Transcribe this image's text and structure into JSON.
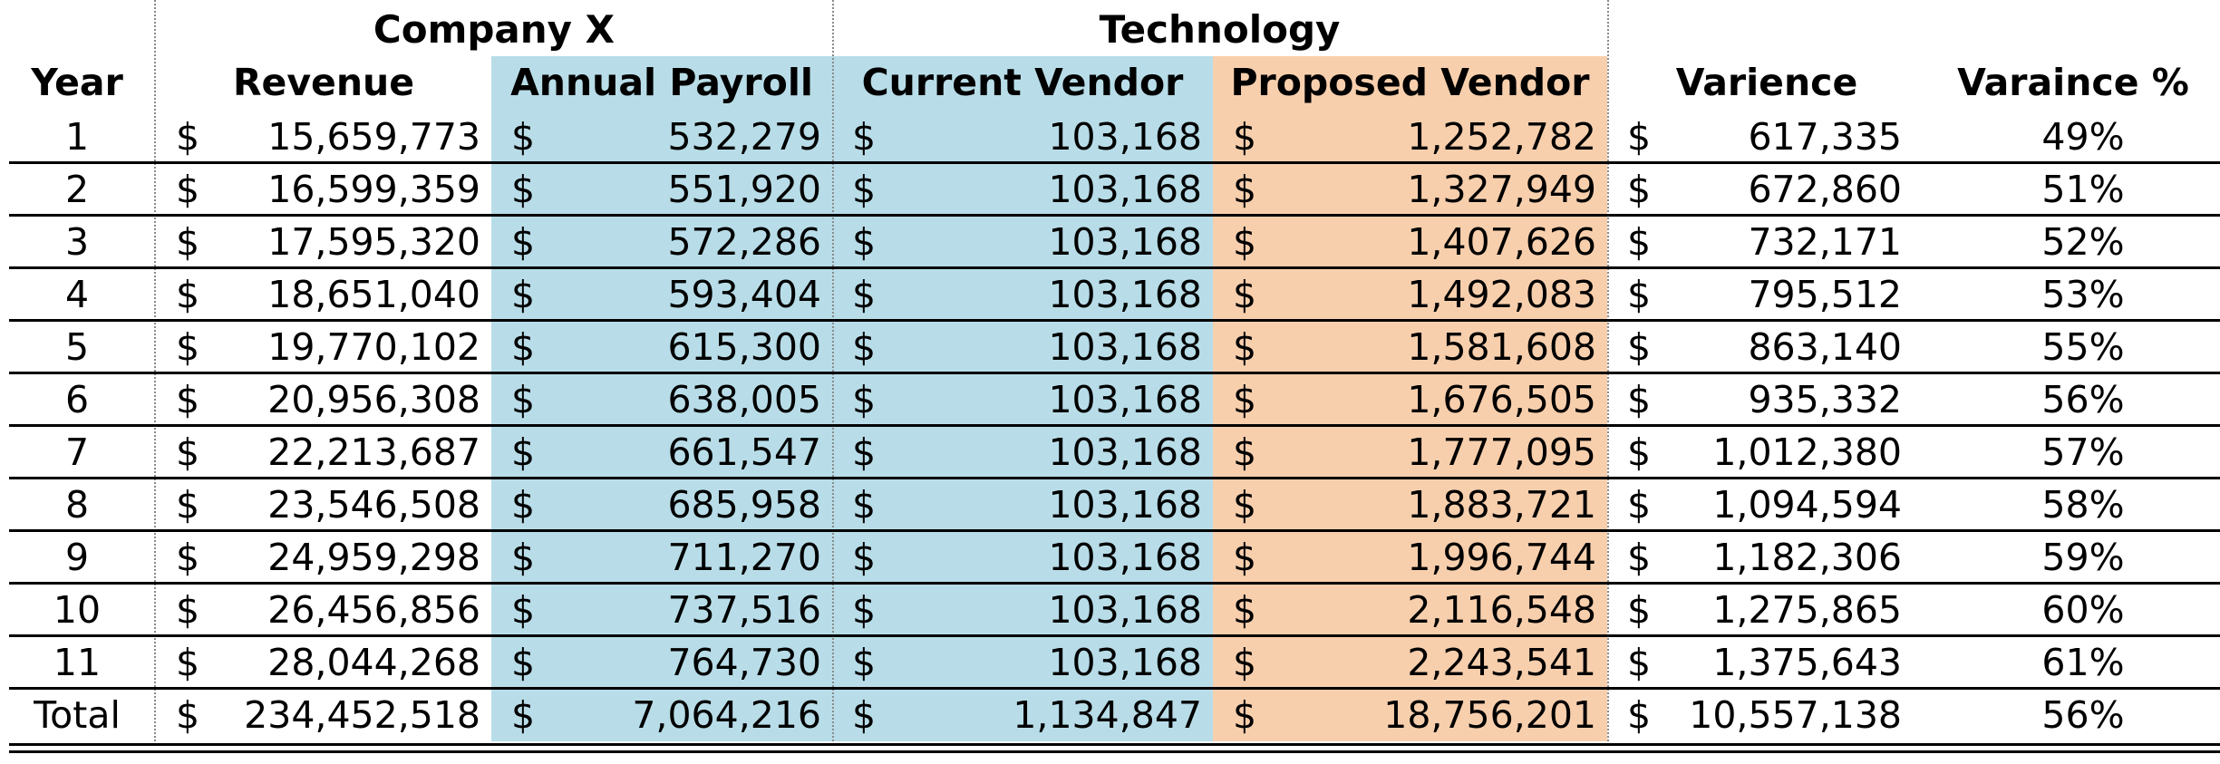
{
  "groups": {
    "company": "Company X",
    "technology": "Technology"
  },
  "headers": {
    "year": "Year",
    "revenue": "Revenue",
    "payroll": "Annual Payroll",
    "current": "Current Vendor",
    "proposed": "Proposed Vendor",
    "variance": "Varience",
    "variance_pct": "Varaince %"
  },
  "currency_symbol": "$",
  "colors": {
    "payroll_fill": "#b8dde8",
    "technology_fill": "#b8dde8",
    "proposed_fill": "#f8cfad"
  },
  "rows": [
    {
      "year": "1",
      "revenue": "15,659,773",
      "payroll": "532,279",
      "current": "103,168",
      "proposed": "1,252,782",
      "variance": "617,335",
      "pct": "49%"
    },
    {
      "year": "2",
      "revenue": "16,599,359",
      "payroll": "551,920",
      "current": "103,168",
      "proposed": "1,327,949",
      "variance": "672,860",
      "pct": "51%"
    },
    {
      "year": "3",
      "revenue": "17,595,320",
      "payroll": "572,286",
      "current": "103,168",
      "proposed": "1,407,626",
      "variance": "732,171",
      "pct": "52%"
    },
    {
      "year": "4",
      "revenue": "18,651,040",
      "payroll": "593,404",
      "current": "103,168",
      "proposed": "1,492,083",
      "variance": "795,512",
      "pct": "53%"
    },
    {
      "year": "5",
      "revenue": "19,770,102",
      "payroll": "615,300",
      "current": "103,168",
      "proposed": "1,581,608",
      "variance": "863,140",
      "pct": "55%"
    },
    {
      "year": "6",
      "revenue": "20,956,308",
      "payroll": "638,005",
      "current": "103,168",
      "proposed": "1,676,505",
      "variance": "935,332",
      "pct": "56%"
    },
    {
      "year": "7",
      "revenue": "22,213,687",
      "payroll": "661,547",
      "current": "103,168",
      "proposed": "1,777,095",
      "variance": "1,012,380",
      "pct": "57%"
    },
    {
      "year": "8",
      "revenue": "23,546,508",
      "payroll": "685,958",
      "current": "103,168",
      "proposed": "1,883,721",
      "variance": "1,094,594",
      "pct": "58%"
    },
    {
      "year": "9",
      "revenue": "24,959,298",
      "payroll": "711,270",
      "current": "103,168",
      "proposed": "1,996,744",
      "variance": "1,182,306",
      "pct": "59%"
    },
    {
      "year": "10",
      "revenue": "26,456,856",
      "payroll": "737,516",
      "current": "103,168",
      "proposed": "2,116,548",
      "variance": "1,275,865",
      "pct": "60%"
    },
    {
      "year": "11",
      "revenue": "28,044,268",
      "payroll": "764,730",
      "current": "103,168",
      "proposed": "2,243,541",
      "variance": "1,375,643",
      "pct": "61%"
    },
    {
      "year": "Total",
      "revenue": "234,452,518",
      "payroll": "7,064,216",
      "current": "1,134,847",
      "proposed": "18,756,201",
      "variance": "10,557,138",
      "pct": "56%"
    }
  ]
}
